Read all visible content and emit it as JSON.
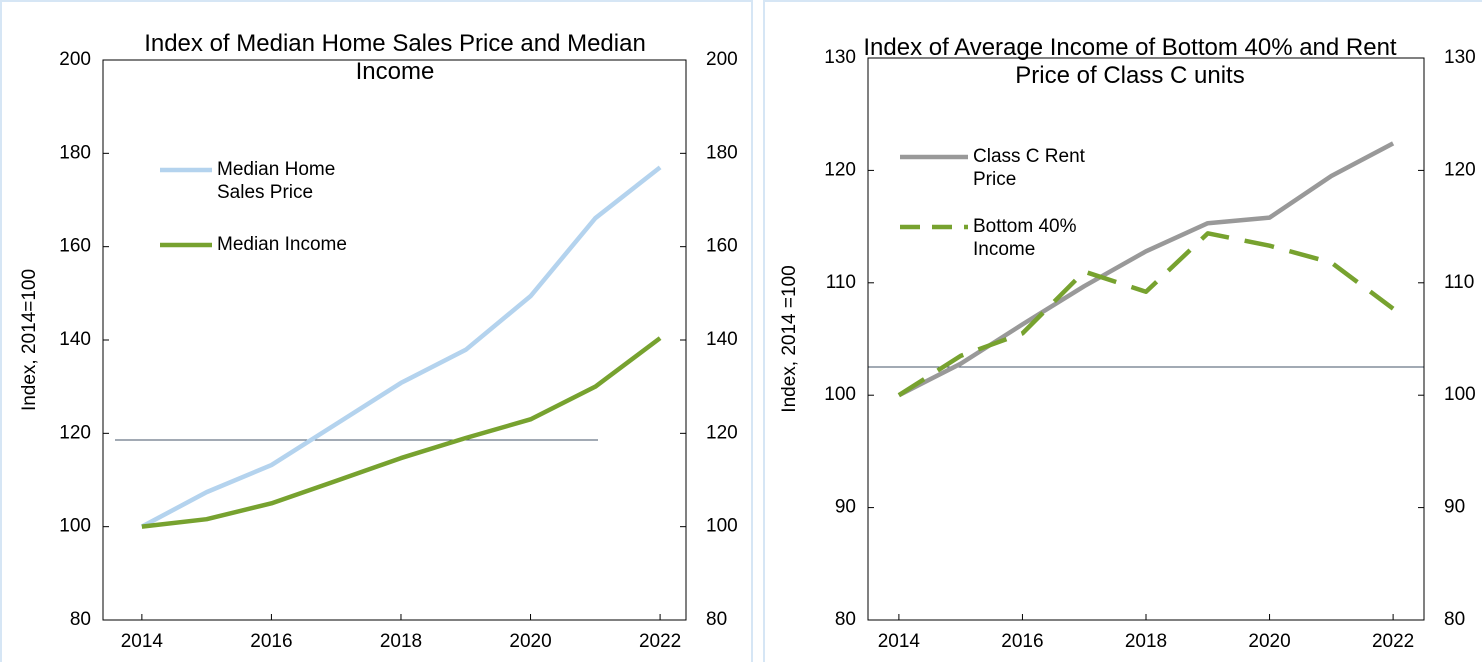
{
  "chart_data": [
    {
      "type": "line",
      "title": "Index of Median Home Sales Price and Median Income",
      "y_label": "Index, 2014=100",
      "x": [
        2014,
        2015,
        2016,
        2017,
        2018,
        2019,
        2020,
        2021,
        2022
      ],
      "xlim": [
        2013.4,
        2022.4
      ],
      "xticks": [
        2014,
        2016,
        2018,
        2020,
        2022
      ],
      "ylim": [
        80,
        200
      ],
      "yticks": [
        80,
        100,
        120,
        140,
        160,
        180,
        200
      ],
      "y2lim": [
        80,
        200
      ],
      "y2ticks": [
        80,
        100,
        120,
        140,
        160,
        180,
        200
      ],
      "series": [
        {
          "name": "Median Home Sales Price",
          "color": "#b4d3ee",
          "dash": false,
          "values": [
            100,
            107.4,
            113.2,
            122,
            130.8,
            137.9,
            149.4,
            166.1,
            177
          ]
        },
        {
          "name": "Median Income",
          "color": "#77a22f",
          "dash": false,
          "values": [
            100,
            101.6,
            105,
            109.8,
            114.7,
            119,
            123,
            130,
            140.4
          ]
        }
      ]
    },
    {
      "type": "line",
      "title": "Index of Average Income of Bottom 40% and Rent Price of Class C units",
      "y_label": "Index, 2014 =100",
      "x": [
        2014,
        2015,
        2016,
        2017,
        2018,
        2019,
        2020,
        2021,
        2022
      ],
      "xlim": [
        2013.5,
        2022.5
      ],
      "xticks": [
        2014,
        2016,
        2018,
        2020,
        2022
      ],
      "ylim": [
        80,
        130
      ],
      "yticks": [
        80,
        90,
        100,
        110,
        120,
        130
      ],
      "y2lim": [
        80,
        130
      ],
      "y2ticks": [
        80,
        90,
        100,
        110,
        120,
        130
      ],
      "series": [
        {
          "name": "Class C Rent Price",
          "color": "#999999",
          "dash": false,
          "values": [
            100,
            102.8,
            106.3,
            109.7,
            112.8,
            115.3,
            115.8,
            119.5,
            122.4
          ]
        },
        {
          "name": "Bottom 40% Income",
          "color": "#77a22f",
          "dash": true,
          "values": [
            100,
            103.5,
            105.5,
            111,
            109.2,
            114.4,
            113.3,
            111.8,
            107.7
          ]
        }
      ]
    }
  ]
}
